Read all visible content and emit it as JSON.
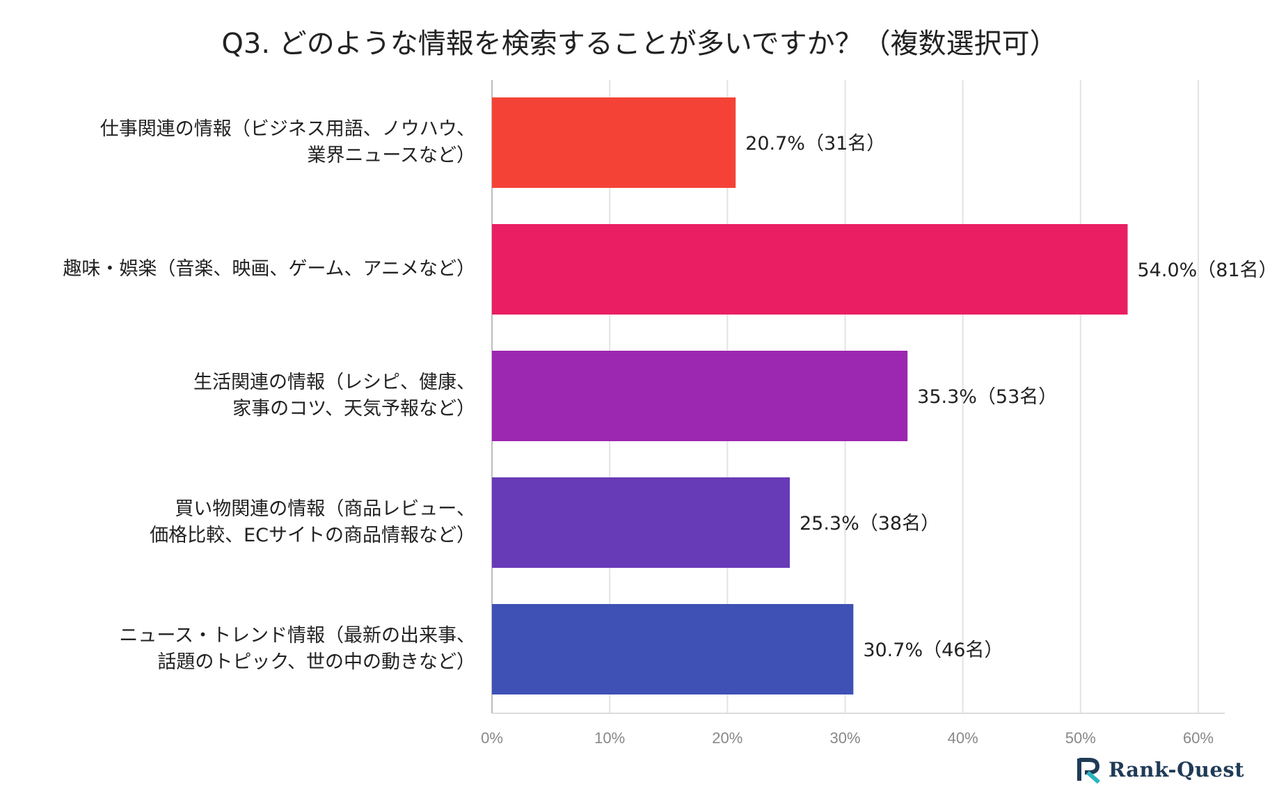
{
  "chart_data": {
    "type": "bar",
    "orientation": "horizontal",
    "title": "Q3. どのような情報を検索することが多いですか？（複数選択可）",
    "categories": [
      [
        "仕事関連の情報（ビジネス用語、ノウハウ、",
        "業界ニュースなど）"
      ],
      [
        "趣味・娯楽（音楽、映画、ゲーム、アニメなど）"
      ],
      [
        "生活関連の情報（レシピ、健康、",
        "家事のコツ、天気予報など）"
      ],
      [
        "買い物関連の情報（商品レビュー、",
        "価格比較、ECサイトの商品情報など）"
      ],
      [
        "ニュース・トレンド情報（最新の出来事、",
        "話題のトピック、世の中の動きなど）"
      ]
    ],
    "values": [
      20.7,
      54.0,
      35.3,
      25.3,
      30.7
    ],
    "data_labels": [
      "20.7%（31名）",
      "54.0%（81名）",
      "35.3%（53名）",
      "25.3%（38名）",
      "30.7%（46名）"
    ],
    "colors": [
      "#f44336",
      "#e91e63",
      "#9c27b0",
      "#673ab7",
      "#3f51b5"
    ],
    "xlim": [
      0,
      60
    ],
    "x_ticks": [
      "0%",
      "10%",
      "20%",
      "30%",
      "40%",
      "50%",
      "60%"
    ],
    "grid": true
  },
  "logo": {
    "text": "Rank-Quest",
    "icon": "rank-quest-logo-icon"
  }
}
